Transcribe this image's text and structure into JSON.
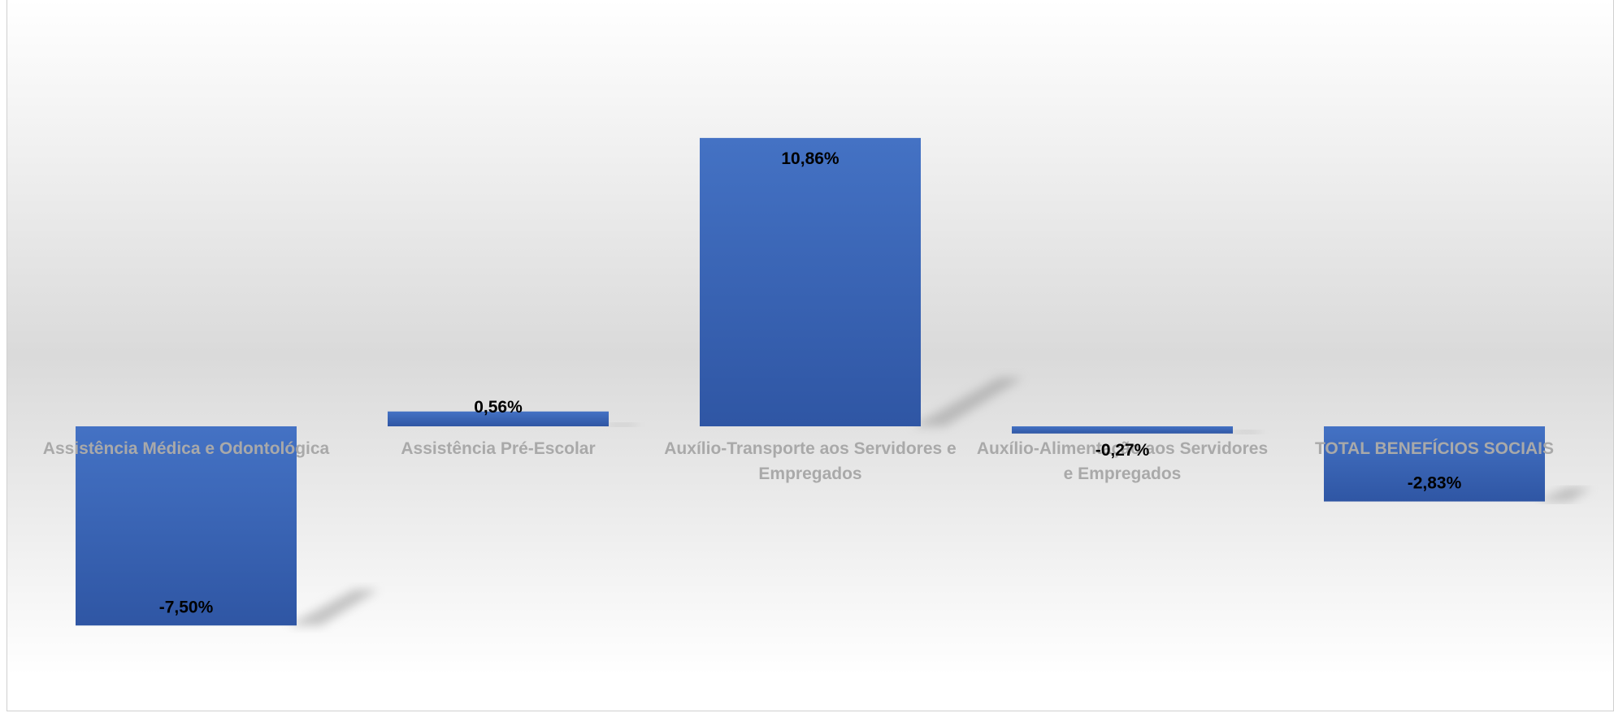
{
  "chart_data": {
    "type": "bar",
    "categories": [
      "Assistência Médica e Odontológica",
      "Assistência Pré-Escolar",
      "Auxílio-Transporte aos Servidores e Empregados",
      "Auxílio-Alimentação aos Servidores e Empregados",
      "TOTAL BENEFÍCIOS SOCIAIS"
    ],
    "category_label_lines": [
      [
        "Assistência Médica e Odontológica"
      ],
      [
        "Assistência Pré-Escolar"
      ],
      [
        "Auxílio-Transporte aos Servidores e",
        "Empregados"
      ],
      [
        "Auxílio-Alimentação aos Servidores",
        "e Empregados"
      ],
      [
        "TOTAL BENEFÍCIOS SOCIAIS"
      ]
    ],
    "values": [
      -7.5,
      0.56,
      10.86,
      -0.27,
      -2.83
    ],
    "data_labels": [
      "-7,50%",
      "0,56%",
      "10,86%",
      "-0,27%",
      "-2,83%"
    ],
    "unit": "%",
    "title": "",
    "xlabel": "",
    "ylabel": "",
    "ylim": [
      -10,
      14
    ],
    "grid": false,
    "legend": "none",
    "colors": {
      "bar_top": "#4472c4",
      "bar_bottom": "#2f56a4",
      "shadow": "#9a9a9a",
      "category_text": "#a9a9a9",
      "data_text": "#000000"
    }
  }
}
